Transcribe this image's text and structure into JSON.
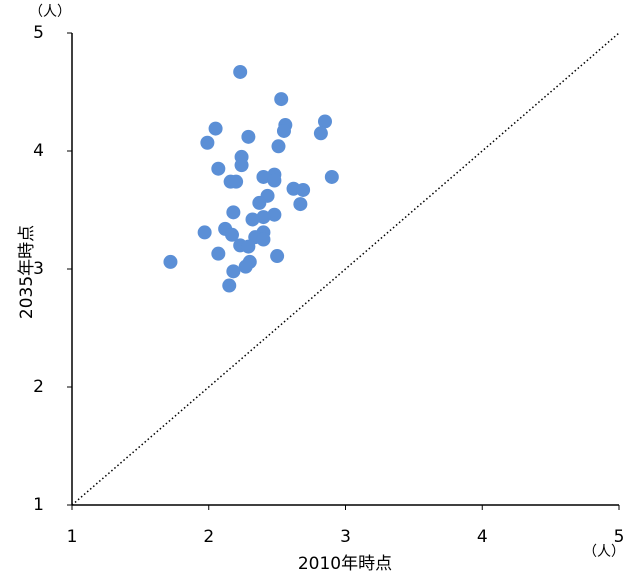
{
  "chart_data": {
    "type": "scatter",
    "x_label": "2010年時点",
    "y_label": "2035年時点",
    "x_unit": "（人）",
    "y_unit": "（人）",
    "xlim": [
      1,
      5
    ],
    "ylim": [
      1,
      5
    ],
    "xticks": [
      1,
      2,
      3,
      4,
      5
    ],
    "yticks": [
      1,
      2,
      3,
      4,
      5
    ],
    "diagonal": true,
    "color": "#5b8fd6",
    "x": [
      2.23,
      2.53,
      2.85,
      2.56,
      2.05,
      2.55,
      2.82,
      2.29,
      1.99,
      2.51,
      2.24,
      2.24,
      2.07,
      2.9,
      2.48,
      2.4,
      2.48,
      2.16,
      2.2,
      2.62,
      2.69,
      2.43,
      2.37,
      2.67,
      2.18,
      2.48,
      2.4,
      2.32,
      1.97,
      2.12,
      2.17,
      2.4,
      2.34,
      2.4,
      2.23,
      2.29,
      2.07,
      2.5,
      1.72,
      2.3,
      2.27,
      2.18,
      2.15
    ],
    "values": [
      4.67,
      4.44,
      4.25,
      4.22,
      4.19,
      4.17,
      4.15,
      4.12,
      4.07,
      4.04,
      3.95,
      3.88,
      3.85,
      3.78,
      3.8,
      3.78,
      3.75,
      3.74,
      3.74,
      3.68,
      3.67,
      3.62,
      3.56,
      3.55,
      3.48,
      3.46,
      3.44,
      3.42,
      3.31,
      3.34,
      3.29,
      3.31,
      3.27,
      3.25,
      3.2,
      3.19,
      3.13,
      3.11,
      3.06,
      3.06,
      3.02,
      2.98,
      2.86
    ]
  }
}
